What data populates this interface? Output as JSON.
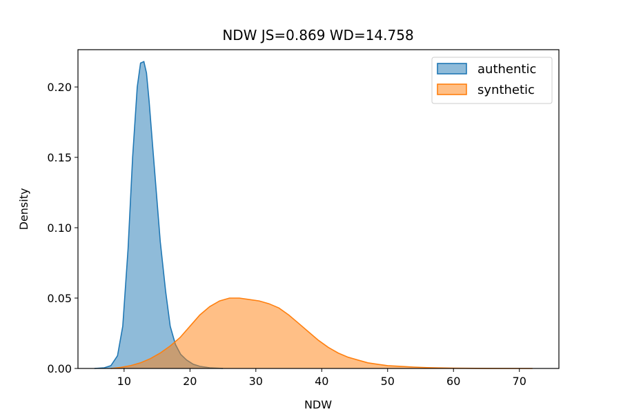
{
  "chart_data": {
    "type": "area",
    "title": "NDW  JS=0.869  WD=14.758",
    "xlabel": "NDW",
    "ylabel": "Density",
    "xlim": [
      3,
      76
    ],
    "ylim": [
      0,
      0.2265
    ],
    "xticks": [
      10,
      20,
      30,
      40,
      50,
      60,
      70
    ],
    "yticks": [
      0.0,
      0.05,
      0.1,
      0.15,
      0.2
    ],
    "ytick_labels": [
      "0.00",
      "0.05",
      "0.10",
      "0.15",
      "0.20"
    ],
    "grid": false,
    "legend_position": "top-right",
    "series": [
      {
        "name": "authentic",
        "color": "#1f77b4",
        "x": [
          5.5,
          7.0,
          8.0,
          9.0,
          9.8,
          10.6,
          11.3,
          12.0,
          12.5,
          13.0,
          13.4,
          13.8,
          14.3,
          14.9,
          15.5,
          16.3,
          17.0,
          17.8,
          18.6,
          19.5,
          20.5,
          21.5,
          23.0,
          25.0
        ],
        "y": [
          0.0,
          0.0005,
          0.002,
          0.009,
          0.03,
          0.085,
          0.15,
          0.2,
          0.217,
          0.218,
          0.21,
          0.19,
          0.16,
          0.125,
          0.09,
          0.055,
          0.03,
          0.017,
          0.01,
          0.006,
          0.003,
          0.0015,
          0.0005,
          0.0
        ]
      },
      {
        "name": "synthetic",
        "color": "#ff7f0e",
        "x": [
          8.0,
          9.5,
          11.0,
          12.5,
          14.0,
          15.5,
          17.0,
          18.5,
          20.0,
          21.5,
          23.0,
          24.5,
          26.0,
          27.5,
          29.0,
          30.5,
          32.0,
          33.5,
          35.0,
          36.5,
          38.0,
          39.5,
          41.0,
          42.5,
          44.0,
          45.5,
          47.0,
          48.5,
          50.0,
          52.0,
          54.0,
          56.0,
          58.0,
          60.0,
          65.0,
          70.0,
          72.0
        ],
        "y": [
          0.0,
          0.0008,
          0.002,
          0.004,
          0.007,
          0.011,
          0.016,
          0.022,
          0.03,
          0.038,
          0.044,
          0.048,
          0.05,
          0.05,
          0.049,
          0.048,
          0.046,
          0.043,
          0.038,
          0.032,
          0.026,
          0.02,
          0.015,
          0.011,
          0.008,
          0.006,
          0.004,
          0.003,
          0.002,
          0.0015,
          0.001,
          0.0006,
          0.0004,
          0.0002,
          5e-05,
          1e-05,
          0.0
        ]
      }
    ]
  }
}
